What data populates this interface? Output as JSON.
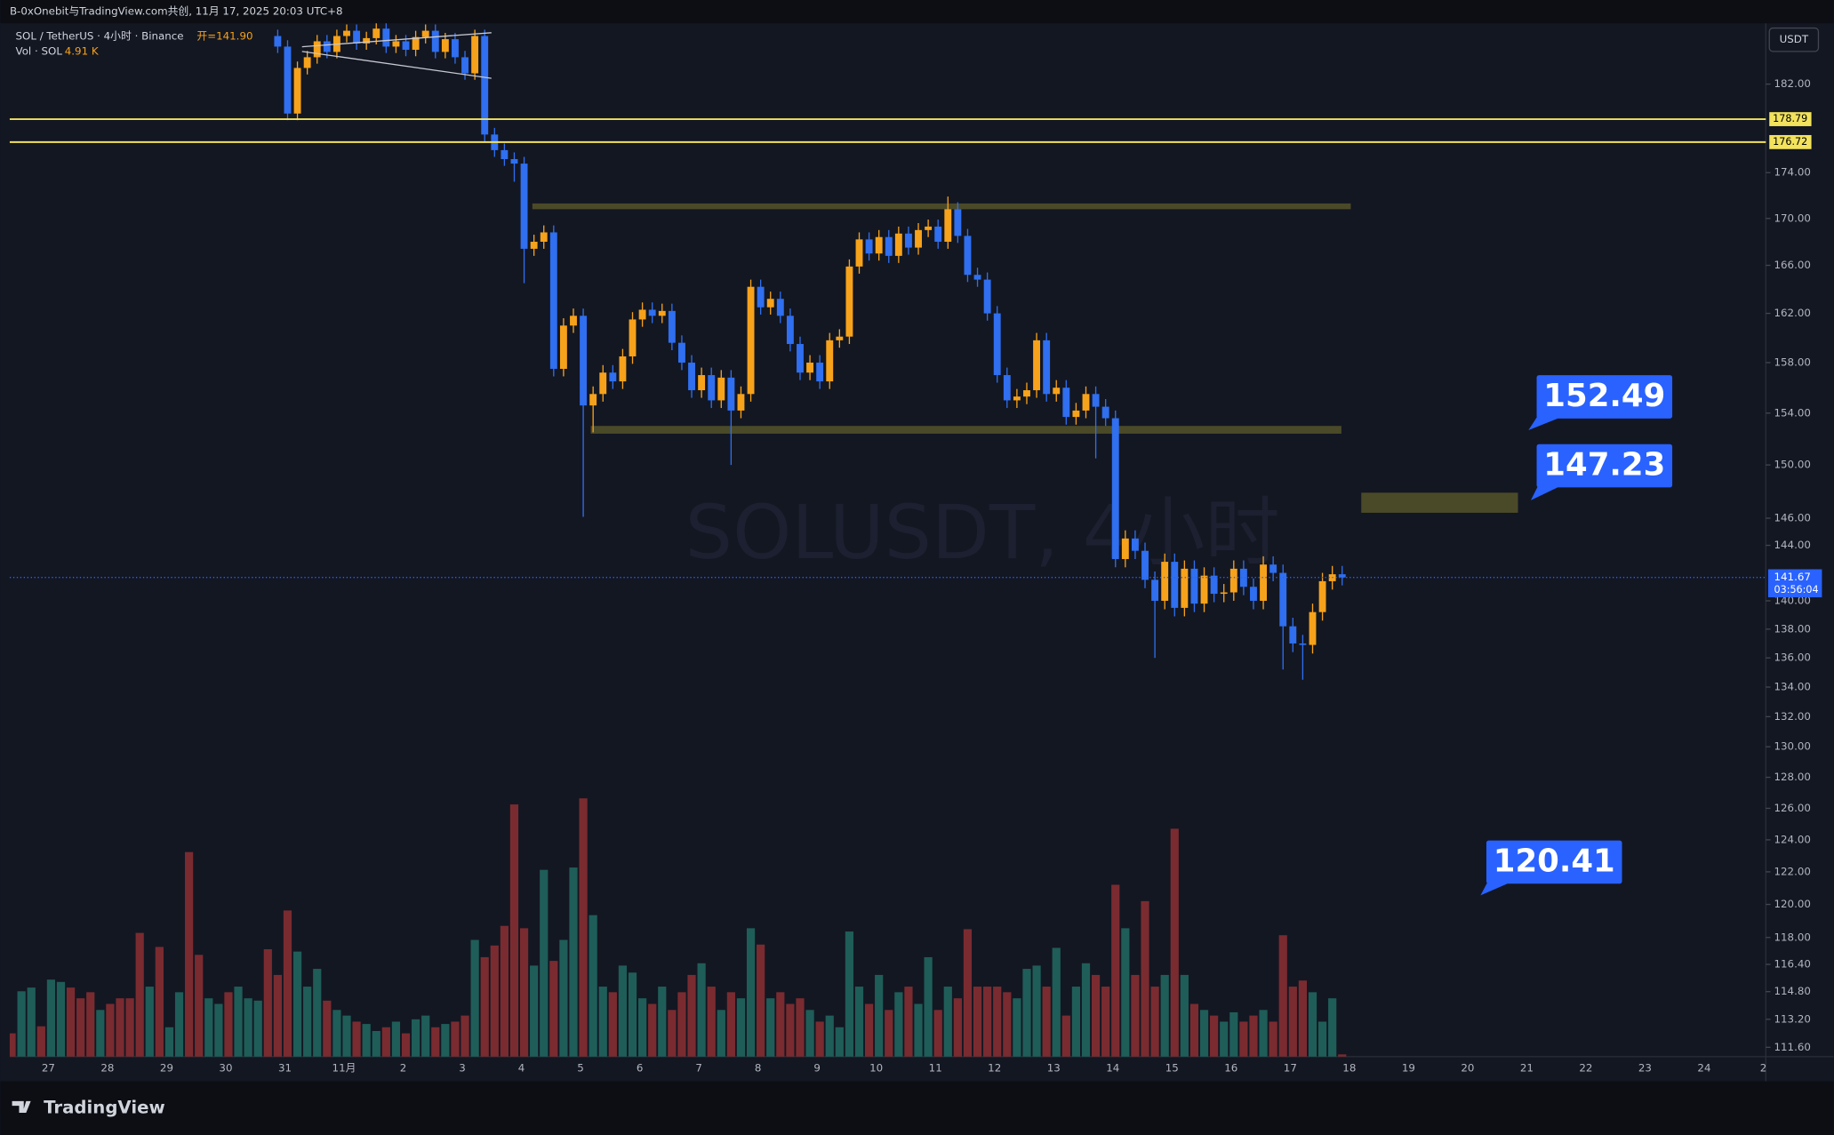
{
  "header": "B-0xOnebit与TradingView.com共创, 11月 17, 2025 20:03 UTC+8",
  "brand": "TradingView",
  "chart_data": {
    "type": "candlestick",
    "symbol_line": "SOL / TetherUS · 4小时 · Binance",
    "legend_ohlc": "开=141.90",
    "volume_legend": "Vol · SOL",
    "volume_legend_value": "4.91 K",
    "watermark": "SOLUSDT, 4小时",
    "currency": "USDT",
    "log_scale": true,
    "grid": false,
    "up_color": "#f7a21b",
    "down_color": "#2f6ff0",
    "volume_up_color": "#1f5d59",
    "volume_down_color": "#7a2b30",
    "ylim": [
      111.07,
      187.7
    ],
    "yticks": [
      {
        "value": 182,
        "label": "182.00"
      },
      {
        "value": 174,
        "label": "174.00"
      },
      {
        "value": 170,
        "label": "170.00"
      },
      {
        "value": 166,
        "label": "166.00"
      },
      {
        "value": 162,
        "label": "162.00"
      },
      {
        "value": 158,
        "label": "158.00"
      },
      {
        "value": 154,
        "label": "154.00"
      },
      {
        "value": 150,
        "label": "150.00"
      },
      {
        "value": 146,
        "label": "146.00"
      },
      {
        "value": 144,
        "label": "144.00"
      },
      {
        "value": 140,
        "label": "140.00"
      },
      {
        "value": 138,
        "label": "138.00"
      },
      {
        "value": 136,
        "label": "136.00"
      },
      {
        "value": 134,
        "label": "134.00"
      },
      {
        "value": 132,
        "label": "132.00"
      },
      {
        "value": 130,
        "label": "130.00"
      },
      {
        "value": 128,
        "label": "128.00"
      },
      {
        "value": 126,
        "label": "126.00"
      },
      {
        "value": 124,
        "label": "124.00"
      },
      {
        "value": 122,
        "label": "122.00"
      },
      {
        "value": 120,
        "label": "120.00"
      },
      {
        "value": 118,
        "label": "118.00"
      },
      {
        "value": 116.4,
        "label": "116.40"
      },
      {
        "value": 114.8,
        "label": "114.80"
      },
      {
        "value": 113.2,
        "label": "113.20"
      },
      {
        "value": 111.6,
        "label": "111.60"
      }
    ],
    "x_labels": [
      "27",
      "28",
      "29",
      "30",
      "31",
      "11月",
      "2",
      "3",
      "4",
      "5",
      "6",
      "7",
      "8",
      "9",
      "10",
      "11",
      "12",
      "13",
      "14",
      "15",
      "16",
      "17",
      "18",
      "19",
      "20",
      "21",
      "22",
      "23",
      "24",
      "2"
    ],
    "open": [
      null,
      null,
      null,
      null,
      null,
      null,
      null,
      null,
      null,
      null,
      null,
      null,
      null,
      null,
      null,
      null,
      null,
      null,
      null,
      null,
      null,
      null,
      null,
      null,
      null,
      null,
      null,
      186.5,
      185.5,
      179.3,
      183.5,
      184.5,
      186.0,
      185.0,
      186.5,
      187.0,
      185.8,
      186.3,
      187.2,
      185.5,
      186.0,
      185.2,
      186.4,
      187.0,
      185.0,
      186.2,
      184.5,
      183.0,
      186.5,
      177.4,
      176.0,
      175.2,
      174.8,
      167.4,
      168.0,
      168.8,
      157.5,
      161.0,
      161.8,
      154.6,
      155.5,
      157.2,
      156.5,
      158.5,
      161.5,
      162.3,
      161.8,
      162.2,
      159.6,
      158.0,
      155.8,
      157.0,
      155.0,
      156.8,
      154.2,
      155.5,
      164.2,
      162.5,
      163.2,
      161.8,
      159.5,
      157.2,
      158.0,
      156.5,
      159.8,
      160.1,
      165.9,
      168.2,
      167.0,
      168.4,
      166.8,
      168.7,
      167.5,
      169.0,
      169.3,
      168.0,
      170.8,
      168.5,
      165.2,
      164.8,
      162.0,
      157.0,
      155.0,
      155.3,
      155.8,
      159.8,
      155.5,
      156.0,
      153.7,
      154.2,
      155.5,
      154.5,
      153.6,
      143.0,
      144.5,
      143.6,
      141.5,
      140.0,
      142.8,
      139.5,
      142.3,
      139.8,
      141.8,
      140.5,
      140.6,
      142.3,
      141.0,
      140.0,
      142.6,
      142.0,
      138.2,
      137.0,
      136.9,
      139.2,
      141.4,
      141.9
    ],
    "high": [
      null,
      null,
      null,
      null,
      null,
      null,
      null,
      null,
      null,
      null,
      null,
      null,
      null,
      null,
      null,
      null,
      null,
      null,
      null,
      null,
      null,
      null,
      null,
      null,
      null,
      null,
      null,
      187.1,
      186.1,
      184.1,
      185.1,
      186.6,
      186.6,
      187.1,
      187.6,
      187.6,
      186.9,
      187.8,
      187.8,
      186.6,
      186.6,
      187.0,
      187.6,
      187.6,
      186.8,
      186.8,
      185.1,
      187.1,
      187.1,
      178.0,
      176.6,
      175.8,
      175.4,
      168.6,
      169.4,
      169.4,
      161.6,
      162.4,
      162.4,
      156.1,
      157.8,
      157.8,
      159.1,
      162.1,
      162.9,
      162.9,
      162.8,
      162.8,
      160.2,
      158.6,
      157.6,
      157.6,
      157.4,
      157.4,
      156.1,
      164.8,
      164.8,
      163.8,
      163.8,
      162.4,
      160.1,
      158.6,
      158.6,
      160.4,
      160.7,
      166.5,
      168.8,
      168.8,
      169.0,
      169.0,
      169.3,
      169.3,
      169.6,
      169.9,
      169.9,
      171.9,
      171.4,
      169.1,
      165.8,
      165.4,
      162.6,
      157.6,
      155.9,
      156.4,
      160.4,
      160.4,
      156.6,
      156.6,
      154.8,
      156.1,
      156.1,
      155.1,
      154.2,
      145.1,
      145.1,
      144.2,
      142.1,
      143.4,
      143.4,
      142.9,
      142.9,
      142.4,
      142.4,
      141.2,
      142.9,
      142.9,
      141.6,
      143.2,
      143.2,
      142.6,
      138.8,
      137.6,
      139.8,
      142.0,
      142.5,
      142.5
    ],
    "low": [
      null,
      null,
      null,
      null,
      null,
      null,
      null,
      null,
      null,
      null,
      null,
      null,
      null,
      null,
      null,
      null,
      null,
      null,
      null,
      null,
      null,
      null,
      null,
      null,
      null,
      null,
      null,
      184.9,
      178.7,
      178.7,
      182.9,
      183.9,
      184.4,
      184.4,
      185.9,
      185.2,
      185.2,
      185.7,
      184.9,
      184.9,
      184.6,
      184.6,
      185.8,
      184.4,
      184.4,
      183.9,
      182.4,
      182.4,
      176.8,
      175.4,
      174.6,
      173.2,
      164.5,
      166.8,
      167.4,
      156.9,
      156.9,
      160.4,
      146.1,
      152.5,
      154.9,
      155.9,
      155.9,
      157.9,
      160.9,
      161.2,
      161.2,
      159.0,
      157.4,
      155.2,
      155.2,
      154.4,
      154.4,
      150.0,
      153.6,
      154.9,
      161.9,
      161.9,
      161.2,
      158.9,
      156.6,
      156.6,
      155.9,
      155.9,
      159.2,
      159.5,
      165.3,
      166.4,
      166.4,
      166.2,
      166.2,
      166.9,
      166.9,
      168.4,
      167.4,
      167.4,
      167.9,
      164.6,
      164.2,
      161.4,
      156.4,
      154.4,
      154.4,
      154.7,
      155.2,
      154.9,
      154.9,
      153.1,
      153.1,
      153.6,
      150.5,
      153.0,
      142.4,
      142.4,
      143.0,
      140.9,
      136.0,
      139.4,
      138.9,
      138.9,
      139.2,
      139.2,
      139.9,
      139.9,
      140.0,
      140.4,
      139.4,
      139.4,
      141.4,
      135.2,
      136.4,
      134.5,
      136.3,
      138.6,
      140.8,
      141.1
    ],
    "close": [
      null,
      null,
      null,
      null,
      null,
      null,
      null,
      null,
      null,
      null,
      null,
      null,
      null,
      null,
      null,
      null,
      null,
      null,
      null,
      null,
      null,
      null,
      null,
      null,
      null,
      null,
      null,
      185.5,
      179.3,
      183.5,
      184.5,
      186.0,
      185.0,
      186.5,
      187.0,
      185.8,
      186.3,
      187.2,
      185.5,
      186.0,
      185.2,
      186.4,
      187.0,
      185.0,
      186.2,
      184.5,
      183.0,
      186.5,
      177.4,
      176.0,
      175.2,
      174.8,
      167.4,
      168.0,
      168.8,
      157.5,
      161.0,
      161.8,
      154.6,
      155.5,
      157.2,
      156.5,
      158.5,
      161.5,
      162.3,
      161.8,
      162.2,
      159.6,
      158.0,
      155.8,
      157.0,
      155.0,
      156.8,
      154.2,
      155.5,
      164.2,
      162.5,
      163.2,
      161.8,
      159.5,
      157.2,
      158.0,
      156.5,
      159.8,
      160.1,
      165.9,
      168.2,
      167.0,
      168.4,
      166.8,
      168.7,
      167.5,
      169.0,
      169.3,
      168.0,
      170.8,
      168.5,
      165.2,
      164.8,
      162.0,
      157.0,
      155.0,
      155.3,
      155.8,
      159.8,
      155.5,
      156.0,
      153.7,
      154.2,
      155.5,
      154.5,
      153.6,
      143.0,
      144.5,
      143.6,
      141.5,
      140.0,
      142.8,
      139.5,
      142.3,
      139.8,
      141.8,
      140.5,
      140.6,
      142.3,
      141.0,
      140.0,
      142.6,
      142.0,
      138.2,
      137.0,
      136.9,
      139.2,
      141.4,
      141.9,
      141.67
    ],
    "volume": [
      50,
      140,
      148,
      65,
      165,
      160,
      148,
      125,
      138,
      100,
      113,
      125,
      125,
      265,
      150,
      235,
      63,
      138,
      438,
      218,
      125,
      113,
      138,
      150,
      125,
      120,
      230,
      175,
      313,
      225,
      150,
      188,
      120,
      100,
      88,
      75,
      70,
      55,
      63,
      75,
      50,
      80,
      88,
      63,
      70,
      75,
      88,
      250,
      213,
      238,
      280,
      540,
      275,
      195,
      400,
      205,
      250,
      405,
      553,
      303,
      150,
      138,
      195,
      180,
      125,
      113,
      150,
      100,
      138,
      175,
      200,
      150,
      100,
      138,
      125,
      275,
      240,
      125,
      138,
      113,
      125,
      100,
      75,
      88,
      63,
      268,
      150,
      113,
      175,
      100,
      138,
      150,
      113,
      213,
      100,
      150,
      125,
      273,
      150,
      150,
      150,
      138,
      125,
      188,
      195,
      150,
      233,
      88,
      150,
      200,
      175,
      150,
      368,
      275,
      175,
      333,
      150,
      175,
      488,
      175,
      113,
      100,
      88,
      75,
      95,
      75,
      88,
      100,
      75,
      260,
      150,
      163,
      138,
      75,
      125,
      4.91
    ],
    "offscreen_volume_up": [
      false,
      true,
      true,
      false,
      true,
      true,
      false,
      false,
      false,
      true,
      false,
      false,
      false,
      false,
      true,
      false,
      true,
      true,
      false,
      false,
      true,
      true,
      false,
      true,
      true,
      true,
      false
    ],
    "level_lines": [
      {
        "value": 178.79,
        "label": "178.79"
      },
      {
        "value": 176.72,
        "label": "176.72"
      }
    ],
    "level_color": "#f2e25c",
    "zones": [
      {
        "top": 171.3,
        "bottom": 170.8
      },
      {
        "top": 153.0,
        "bottom": 152.4
      },
      {
        "top": 147.9,
        "bottom": 146.4
      }
    ],
    "zone_color": "#4b4a28",
    "last_price": {
      "value": 141.67,
      "label": "141.67"
    },
    "countdown": "03:56:04",
    "callouts": [
      152.49,
      147.23,
      120.41
    ],
    "callout_color": "#2962ff"
  }
}
